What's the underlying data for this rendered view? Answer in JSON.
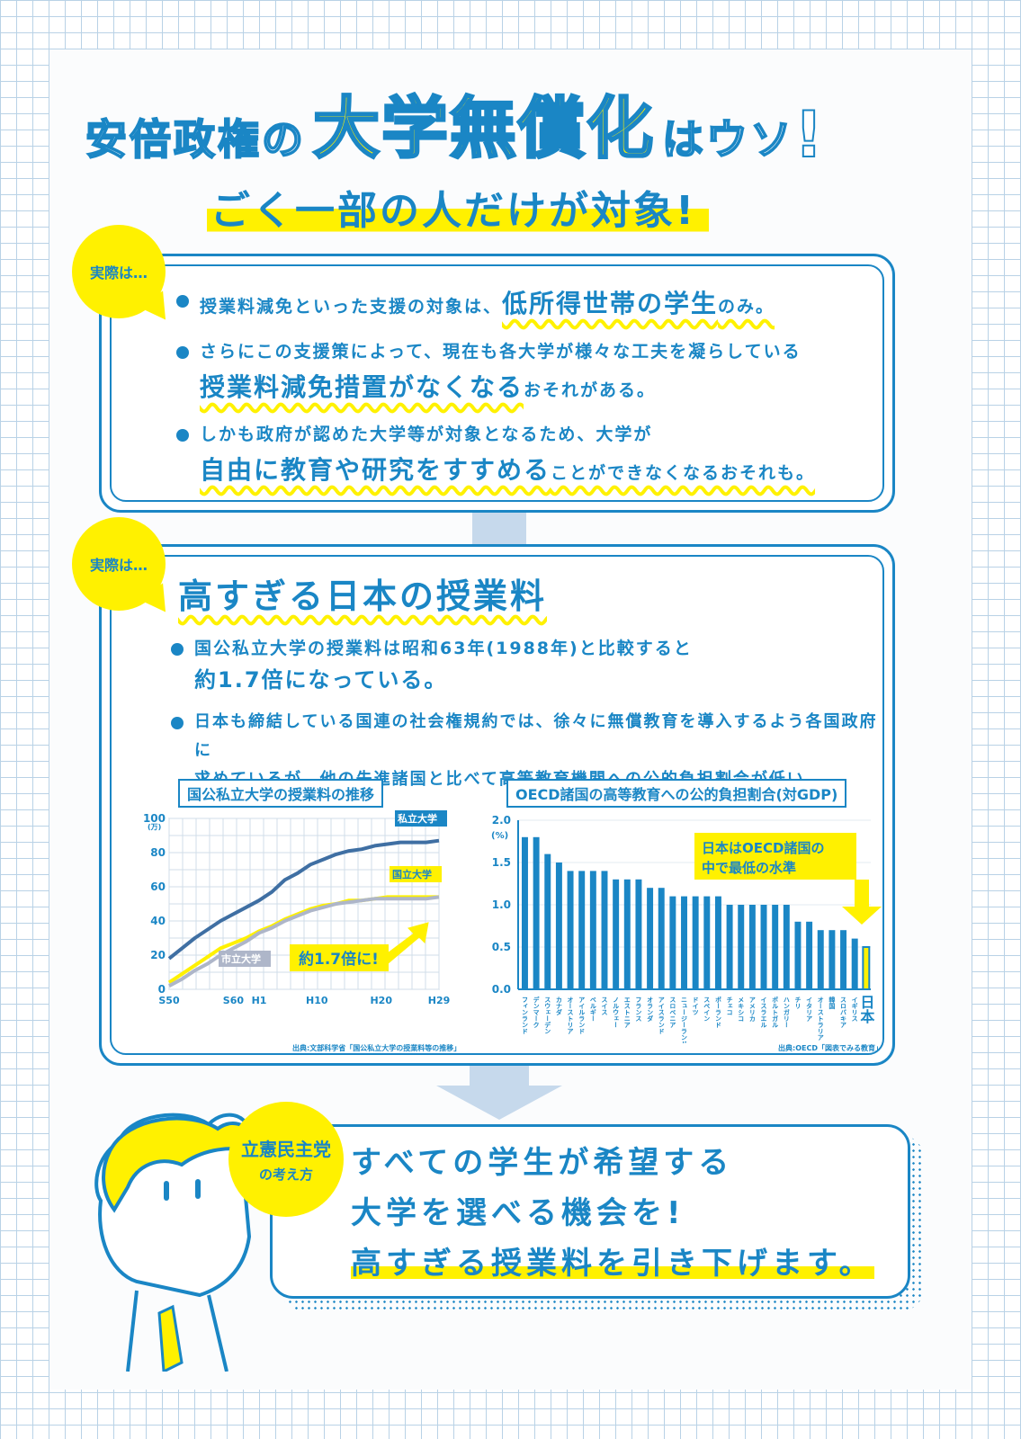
{
  "title": {
    "part1": "安倍政権の",
    "part2": "大学無償化",
    "part3": "はウソ",
    "excl": "!"
  },
  "subtitle": "ごく一部の人だけが対象!",
  "section1": {
    "badge": "実際は…",
    "items": [
      {
        "a": "授業料減免といった支援の対象は、",
        "b": "低所得世帯の学生",
        "c": "のみ。"
      },
      {
        "a": "さらにこの支援策によって、現在も各大学が様々な工夫を凝らしている",
        "b": "授業料減免措置がなくなる",
        "c": "おそれがある。"
      },
      {
        "a": "しかも政府が認めた大学等が対象となるため、大学が",
        "b": "自由に教育や研究をすすめる",
        "c": "ことができなくなるおそれも。"
      }
    ]
  },
  "section2": {
    "badge": "実際は…",
    "heading": "高すぎる日本の授業料",
    "items": [
      {
        "a": "国公私立大学の授業料は昭和63年(1988年)と比較すると",
        "b": "約1.7倍になっている。"
      },
      {
        "a": "日本も締結している国連の社会権規約では、徐々に無償教育を導入するよう各国政府に",
        "b": "求めているが、他の先進諸国と比べて高等教育機関への公的負担割合が低い。"
      }
    ]
  },
  "chart_data": [
    {
      "type": "line",
      "title": "国公私立大学の授業料の推移",
      "ylabel": "(万)",
      "ylim": [
        0,
        100
      ],
      "yticks": [
        "100",
        "80",
        "60",
        "40",
        "20",
        "0"
      ],
      "xticks": [
        "S50",
        "S60",
        "H1",
        "H10",
        "H20",
        "H29"
      ],
      "x": [
        1975,
        1977,
        1979,
        1981,
        1983,
        1985,
        1987,
        1989,
        1991,
        1993,
        1995,
        1997,
        1999,
        2001,
        2003,
        2005,
        2007,
        2009,
        2011,
        2013,
        2015,
        2017
      ],
      "series": [
        {
          "name": "私立大学",
          "values": [
            18,
            24,
            30,
            35,
            40,
            44,
            48,
            52,
            57,
            64,
            68,
            73,
            76,
            79,
            81,
            82,
            84,
            85,
            86,
            86,
            86,
            87
          ]
        },
        {
          "name": "国立大学",
          "values": [
            4,
            9,
            14,
            19,
            24,
            27,
            30,
            34,
            37,
            41,
            44,
            47,
            49,
            50,
            52,
            52,
            53,
            54,
            54,
            54,
            54,
            54
          ]
        },
        {
          "name": "市立大学",
          "values": [
            2,
            6,
            11,
            15,
            20,
            24,
            28,
            33,
            36,
            40,
            43,
            46,
            48,
            50,
            51,
            52,
            53,
            53,
            53,
            53,
            53,
            54
          ]
        }
      ],
      "annotation": "約1.7倍に!",
      "source": "出典:文部科学省「国公私立大学の授業料等の推移」"
    },
    {
      "type": "bar",
      "title": "OECD諸国の高等教育への公的負担割合(対GDP)",
      "ylabel": "(%)",
      "ylim": [
        0,
        2.0
      ],
      "yticks": [
        "2.0",
        "1.5",
        "1.0",
        "0.5",
        "0.0"
      ],
      "categories": [
        "フィンランド",
        "デンマーク",
        "スウェーデン",
        "カナダ",
        "オーストリア",
        "アイルランド",
        "ベルギー",
        "スイス",
        "ノルウェー",
        "エストニア",
        "フランス",
        "オランダ",
        "アイスランド",
        "スロベニア",
        "ニュージーランド",
        "ドイツ",
        "スペイン",
        "ポーランド",
        "チェコ",
        "メキシコ",
        "アメリカ",
        "イスラエル",
        "ポルトガル",
        "ハンガリー",
        "チリ",
        "イタリア",
        "オーストラリア",
        "韓国",
        "スロバキア",
        "イギリス",
        "日本"
      ],
      "values": [
        1.8,
        1.8,
        1.6,
        1.5,
        1.4,
        1.4,
        1.4,
        1.4,
        1.3,
        1.3,
        1.3,
        1.2,
        1.2,
        1.1,
        1.1,
        1.1,
        1.1,
        1.1,
        1.0,
        1.0,
        1.0,
        1.0,
        1.0,
        1.0,
        0.8,
        0.8,
        0.7,
        0.7,
        0.7,
        0.6,
        0.5
      ],
      "highlight": "日本",
      "annotation_line1": "日本はOECD諸国の",
      "annotation_line2": "中で最低の水準",
      "source": "出典:OECD「図表でみる教育」",
      "colors": {
        "bar": "#1a86c5",
        "highlight": "#fff100"
      }
    }
  ],
  "section3": {
    "badge_line1": "立憲民主党",
    "badge_line2": "の考え方",
    "lines": [
      "すべての学生が希望する",
      "大学を選べる機会を!",
      "高すぎる授業料を引き下げます。"
    ]
  },
  "colors": {
    "blue": "#1a86c5",
    "yellow": "#fff100",
    "grid": "#b9d2e6"
  }
}
